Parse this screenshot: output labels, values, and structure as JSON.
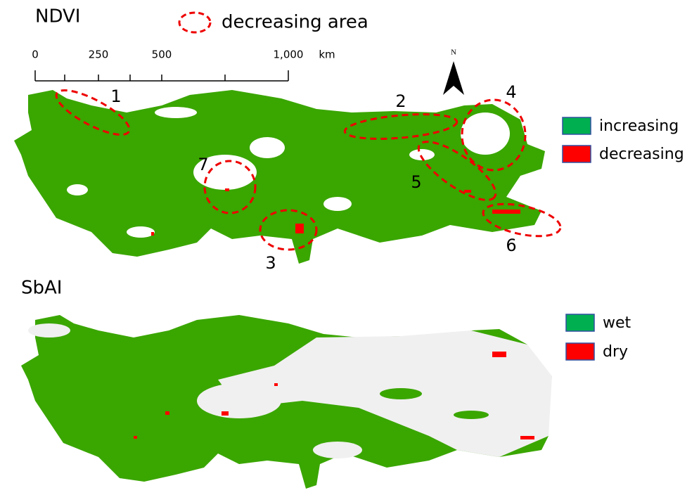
{
  "top_panel": {
    "title": "NDVI",
    "marker_legend": "decreasing area",
    "scale": {
      "labels": [
        "0",
        "250",
        "500",
        "1,000"
      ],
      "unit": "km"
    },
    "north": "N",
    "callouts": [
      "1",
      "2",
      "3",
      "4",
      "5",
      "6",
      "7"
    ],
    "legend": [
      "increasing",
      "decreasing"
    ]
  },
  "bottom_panel": {
    "title": "SbAI",
    "legend": [
      "wet",
      "dry"
    ]
  }
}
